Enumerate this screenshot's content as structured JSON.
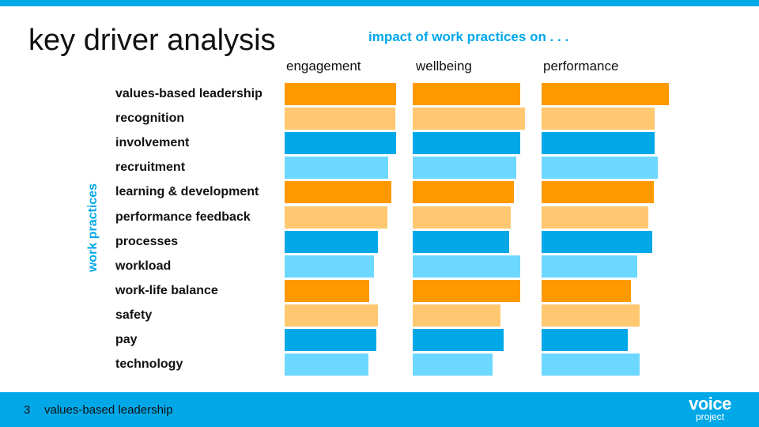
{
  "colors": {
    "accent_blue": "#00A8E8",
    "dark_orange": "#FF9900",
    "light_orange": "#FFC870",
    "dark_blue": "#00A8E8",
    "light_blue": "#6DD8FF",
    "footer_bar": "#00A8E8"
  },
  "header": {
    "title": "key driver analysis"
  },
  "footer": {
    "page_number": "3",
    "text": "values-based leadership",
    "logo_main": "voice",
    "logo_sub": "project"
  },
  "chart_data": {
    "type": "bar",
    "orientation": "horizontal",
    "title": "impact of work practices on . . .",
    "ylabel": "work practices",
    "xlabel": "",
    "value_scale": "relative impact (0–1, longest bar per column = 1.0)",
    "categories": [
      "values-based leadership",
      "recognition",
      "involvement",
      "recruitment",
      "learning & development",
      "performance feedback",
      "processes",
      "workload",
      "work-life balance",
      "safety",
      "pay",
      "technology"
    ],
    "category_colors": [
      "dark_orange",
      "light_orange",
      "dark_blue",
      "light_blue",
      "dark_orange",
      "light_orange",
      "dark_blue",
      "light_blue",
      "dark_orange",
      "light_orange",
      "dark_blue",
      "light_blue"
    ],
    "series": [
      {
        "name": "engagement",
        "values": [
          1.0,
          0.99,
          1.0,
          0.93,
          0.96,
          0.92,
          0.84,
          0.8,
          0.76,
          0.84,
          0.82,
          0.75
        ]
      },
      {
        "name": "wellbeing",
        "values": [
          0.96,
          1.0,
          0.96,
          0.92,
          0.9,
          0.87,
          0.86,
          0.96,
          0.96,
          0.78,
          0.81,
          0.71
        ]
      },
      {
        "name": "performance",
        "values": [
          1.0,
          0.89,
          0.89,
          0.91,
          0.88,
          0.84,
          0.87,
          0.75,
          0.7,
          0.77,
          0.68,
          0.77
        ]
      }
    ]
  }
}
